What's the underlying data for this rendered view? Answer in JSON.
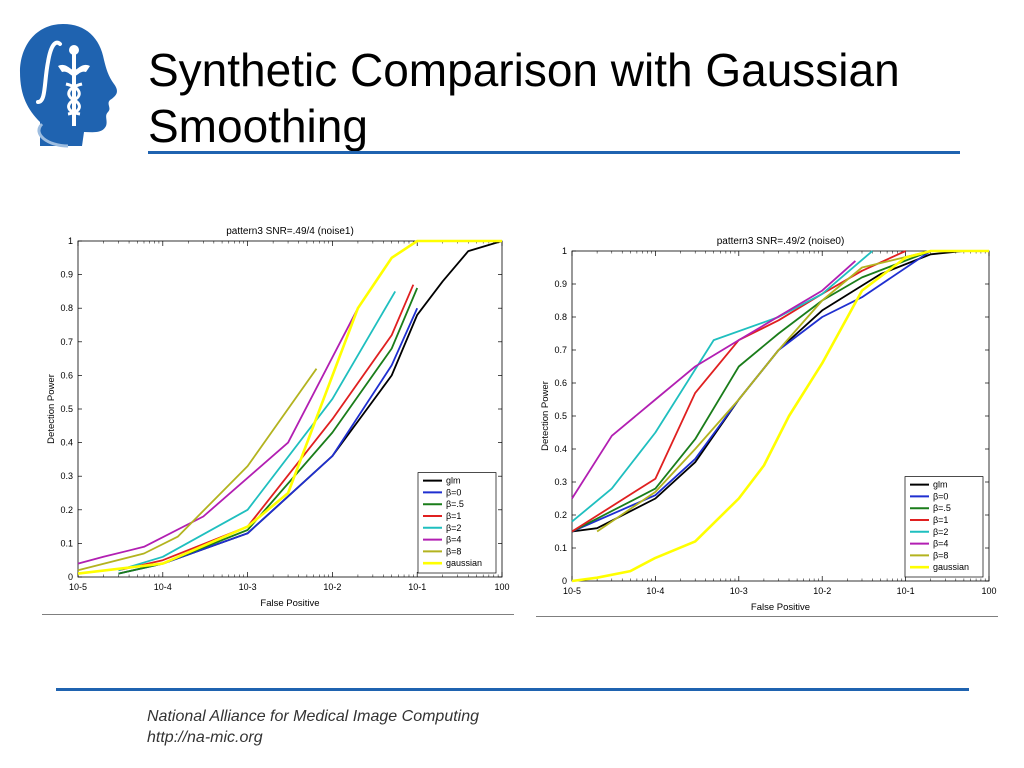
{
  "slide": {
    "title_lines": [
      "Synthetic Comparison with Gaussian",
      "Smoothing"
    ],
    "footer_lines": [
      "National Alliance for Medical Image Computing",
      "http://na-mic.org"
    ],
    "colors": {
      "rule": "#1f63b0",
      "logo": "#1f63b0"
    }
  },
  "chart_data": [
    {
      "type": "line",
      "title": "pattern3 SNR=.49/4 (noise1)",
      "xlabel": "False Positive",
      "ylabel": "Detection Power",
      "xscale": "log",
      "xlim": [
        1e-05,
        1
      ],
      "ylim": [
        0,
        1
      ],
      "xticks": [
        "10-5",
        "10-4",
        "10-3",
        "10-2",
        "10-1",
        "100"
      ],
      "yticks": [
        "0",
        "0.1",
        "0.2",
        "0.3",
        "0.4",
        "0.5",
        "0.6",
        "0.7",
        "0.8",
        "0.9",
        "1"
      ],
      "legend_position": "bottom-right",
      "series": [
        {
          "name": "glm",
          "color": "#000000",
          "x": [
            1e-05,
            0.0001,
            0.001,
            0.01,
            0.05,
            0.1,
            0.2,
            0.4,
            1
          ],
          "y": [
            0.01,
            0.04,
            0.13,
            0.36,
            0.6,
            0.78,
            0.88,
            0.97,
            1.0
          ]
        },
        {
          "name": "β=0",
          "color": "#1f2fd0",
          "x": [
            3e-05,
            0.0001,
            0.001,
            0.01,
            0.05,
            0.1
          ],
          "y": [
            0.01,
            0.04,
            0.13,
            0.36,
            0.63,
            0.8
          ]
        },
        {
          "name": "β=.5",
          "color": "#1a7d1a",
          "x": [
            3e-05,
            0.0001,
            0.001,
            0.01,
            0.05,
            0.1
          ],
          "y": [
            0.01,
            0.04,
            0.14,
            0.43,
            0.68,
            0.86
          ]
        },
        {
          "name": "β=1",
          "color": "#e02020",
          "x": [
            3e-05,
            0.0001,
            0.001,
            0.01,
            0.05,
            0.09
          ],
          "y": [
            0.02,
            0.05,
            0.15,
            0.47,
            0.72,
            0.87
          ]
        },
        {
          "name": "β=2",
          "color": "#1fbfbf",
          "x": [
            3e-05,
            0.0001,
            0.001,
            0.01,
            0.055
          ],
          "y": [
            0.02,
            0.06,
            0.2,
            0.53,
            0.85
          ]
        },
        {
          "name": "β=4",
          "color": "#b21fb2",
          "x": [
            1e-05,
            2e-05,
            6e-05,
            0.0003,
            0.003,
            0.02
          ],
          "y": [
            0.04,
            0.06,
            0.09,
            0.18,
            0.4,
            0.8
          ]
        },
        {
          "name": "β=8",
          "color": "#b3b31f",
          "x": [
            1e-05,
            6e-05,
            0.00015,
            0.001,
            0.0065
          ],
          "y": [
            0.02,
            0.07,
            0.12,
            0.33,
            0.62
          ]
        },
        {
          "name": "gaussian",
          "color": "#ffff00",
          "x": [
            1e-05,
            0.0001,
            0.001,
            0.003,
            0.02,
            0.05,
            0.1,
            0.2,
            1
          ],
          "y": [
            0.01,
            0.04,
            0.15,
            0.25,
            0.8,
            0.95,
            1.0,
            1.0,
            1.0
          ]
        }
      ]
    },
    {
      "type": "line",
      "title": "pattern3 SNR=.49/2 (noise0)",
      "xlabel": "False Positive",
      "ylabel": "Detection Power",
      "xscale": "log",
      "xlim": [
        1e-05,
        1
      ],
      "ylim": [
        0,
        1
      ],
      "xticks": [
        "10-5",
        "10-4",
        "10-3",
        "10-2",
        "10-1",
        "100"
      ],
      "yticks": [
        "0",
        "0.1",
        "0.2",
        "0.3",
        "0.4",
        "0.5",
        "0.6",
        "0.7",
        "0.8",
        "0.9",
        "1"
      ],
      "legend_position": "bottom-right",
      "series": [
        {
          "name": "glm",
          "color": "#000000",
          "x": [
            1e-05,
            2e-05,
            0.0001,
            0.0003,
            0.001,
            0.003,
            0.01,
            0.05,
            0.2,
            0.5
          ],
          "y": [
            0.15,
            0.16,
            0.25,
            0.36,
            0.55,
            0.7,
            0.82,
            0.93,
            0.99,
            1.0
          ]
        },
        {
          "name": "β=0",
          "color": "#1f2fd0",
          "x": [
            1e-05,
            0.0001,
            0.0003,
            0.001,
            0.003,
            0.01,
            0.03,
            0.2
          ],
          "y": [
            0.15,
            0.26,
            0.37,
            0.55,
            0.7,
            0.8,
            0.86,
            1.0
          ]
        },
        {
          "name": "β=.5",
          "color": "#1a7d1a",
          "x": [
            1e-05,
            0.0001,
            0.0003,
            0.001,
            0.003,
            0.01,
            0.03,
            0.2
          ],
          "y": [
            0.15,
            0.28,
            0.43,
            0.65,
            0.75,
            0.85,
            0.92,
            1.0
          ]
        },
        {
          "name": "β=1",
          "color": "#e02020",
          "x": [
            1e-05,
            0.0001,
            0.0003,
            0.001,
            0.003,
            0.01,
            0.03,
            0.1
          ],
          "y": [
            0.15,
            0.31,
            0.57,
            0.73,
            0.79,
            0.87,
            0.94,
            1.0
          ]
        },
        {
          "name": "β=2",
          "color": "#1fbfbf",
          "x": [
            1e-05,
            3e-05,
            0.0001,
            0.0005,
            0.003,
            0.01,
            0.04
          ],
          "y": [
            0.18,
            0.28,
            0.45,
            0.73,
            0.8,
            0.87,
            1.0
          ]
        },
        {
          "name": "β=4",
          "color": "#b21fb2",
          "x": [
            1e-05,
            3e-05,
            0.0001,
            0.0003,
            0.001,
            0.01,
            0.025
          ],
          "y": [
            0.25,
            0.44,
            0.55,
            0.65,
            0.73,
            0.88,
            0.97
          ]
        },
        {
          "name": "β=8",
          "color": "#b3b31f",
          "x": [
            2e-05,
            0.0001,
            0.0003,
            0.001,
            0.003,
            0.01,
            0.03,
            0.2
          ],
          "y": [
            0.15,
            0.27,
            0.4,
            0.55,
            0.7,
            0.85,
            0.95,
            1.0
          ]
        },
        {
          "name": "gaussian",
          "color": "#ffff00",
          "x": [
            1e-05,
            2e-05,
            5e-05,
            0.0001,
            0.0003,
            0.001,
            0.002,
            0.004,
            0.01,
            0.03,
            0.1,
            0.2,
            1
          ],
          "y": [
            0.0,
            0.01,
            0.03,
            0.07,
            0.12,
            0.25,
            0.35,
            0.5,
            0.66,
            0.88,
            0.98,
            1.0,
            1.0
          ]
        }
      ]
    }
  ]
}
